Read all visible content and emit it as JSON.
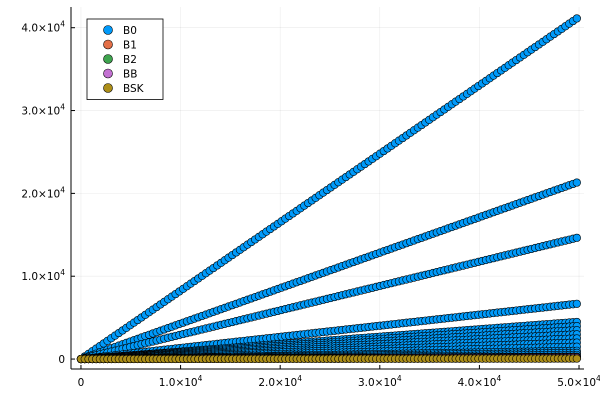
{
  "chart_data": {
    "type": "scatter",
    "title": "",
    "xlabel": "",
    "ylabel": "",
    "xlim": [
      -1000,
      50500
    ],
    "ylim": [
      -1200,
      42500
    ],
    "grid": true,
    "legend_position": "top-left",
    "x_ticks": [
      {
        "value": 0,
        "base": "0",
        "exp": ""
      },
      {
        "value": 10000,
        "base": "1.0×10",
        "exp": "4"
      },
      {
        "value": 20000,
        "base": "2.0×10",
        "exp": "4"
      },
      {
        "value": 30000,
        "base": "3.0×10",
        "exp": "4"
      },
      {
        "value": 40000,
        "base": "4.0×10",
        "exp": "4"
      },
      {
        "value": 50000,
        "base": "5.0×10",
        "exp": "4"
      }
    ],
    "y_ticks": [
      {
        "value": 0,
        "base": "0",
        "exp": ""
      },
      {
        "value": 10000,
        "base": "1.0×10",
        "exp": "4"
      },
      {
        "value": 20000,
        "base": "2.0×10",
        "exp": "4"
      },
      {
        "value": 30000,
        "base": "3.0×10",
        "exp": "4"
      },
      {
        "value": 40000,
        "base": "4.0×10",
        "exp": "4"
      }
    ],
    "series": [
      {
        "name": "B0",
        "color": "#009AFA",
        "slopes": [
          0.826,
          0.428,
          0.294,
          0.134,
          0.09,
          0.08,
          0.07,
          0.06,
          0.05,
          0.04,
          0.03,
          0.02,
          0.015,
          0.01,
          0.005
        ],
        "x_max": 50000
      },
      {
        "name": "B1",
        "color": "#E36F47",
        "slopes": [
          0.004,
          0.002
        ],
        "x_max": 50000
      },
      {
        "name": "B2",
        "color": "#3EA44E",
        "slopes": [
          0.003,
          0.001
        ],
        "x_max": 50000
      },
      {
        "name": "BB",
        "color": "#C371D2",
        "slopes": [
          0.002,
          0.001
        ],
        "x_max": 50000
      },
      {
        "name": "BSK",
        "color": "#AC8E18",
        "slopes": [
          0.0
        ],
        "x_max": 50000
      }
    ]
  }
}
